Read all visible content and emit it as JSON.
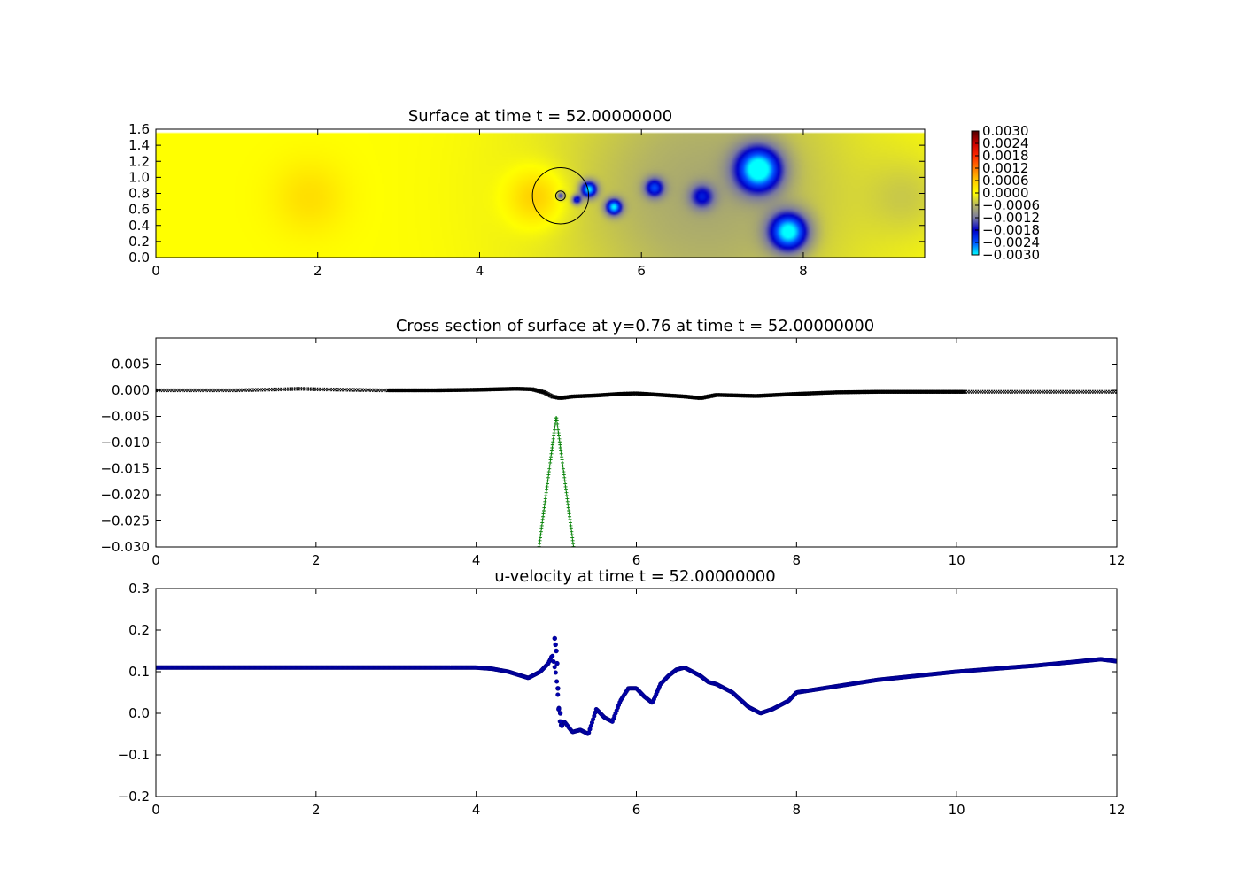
{
  "chart_data": [
    {
      "type": "heatmap",
      "title": "Surface at time t =    52.00000000",
      "xlim": [
        0,
        9.5
      ],
      "ylim": [
        0,
        1.6
      ],
      "xticks": [
        "0",
        "2",
        "4",
        "6",
        "8"
      ],
      "yticks": [
        "0.0",
        "0.2",
        "0.4",
        "0.6",
        "0.8",
        "1.0",
        "1.2",
        "1.4",
        "1.6"
      ],
      "colorbar": {
        "range": [
          -0.003,
          0.003
        ],
        "ticks": [
          "0.0030",
          "0.0024",
          "0.0018",
          "0.0012",
          "0.0006",
          "0.0000",
          "−0.0006",
          "−0.0012",
          "−0.0018",
          "−0.0024",
          "−0.0030"
        ]
      },
      "field_x_extent": [
        0,
        9.5
      ],
      "field_y_extent": [
        0,
        1.55
      ],
      "background_value": 0.0,
      "features": [
        {
          "x": 6.8,
          "y": 0.8,
          "radius": 1.9,
          "value": -0.00072
        },
        {
          "x": 4.7,
          "y": 0.75,
          "radius": 0.35,
          "value": 0.0007
        },
        {
          "x": 1.9,
          "y": 0.75,
          "radius": 0.45,
          "value": 0.00035
        },
        {
          "x": 7.45,
          "y": 1.1,
          "radius": 0.28,
          "value": -0.0028
        },
        {
          "x": 7.82,
          "y": 0.32,
          "radius": 0.24,
          "value": -0.0027
        },
        {
          "x": 5.35,
          "y": 0.85,
          "radius": 0.1,
          "value": -0.0026
        },
        {
          "x": 5.66,
          "y": 0.63,
          "radius": 0.1,
          "value": -0.0025
        },
        {
          "x": 6.16,
          "y": 0.87,
          "radius": 0.12,
          "value": -0.0017
        },
        {
          "x": 6.75,
          "y": 0.76,
          "radius": 0.15,
          "value": -0.0013
        },
        {
          "x": 5.2,
          "y": 0.72,
          "radius": 0.06,
          "value": -0.0018
        },
        {
          "x": 5.0,
          "y": 0.77,
          "radius": 0.05,
          "value": -0.0016
        },
        {
          "x": 9.3,
          "y": 0.75,
          "radius": 0.5,
          "value": -0.0003
        }
      ],
      "circles": [
        {
          "cx": 5.0,
          "cy": 0.77,
          "r": 0.35
        },
        {
          "cx": 5.0,
          "cy": 0.77,
          "r": 0.06
        }
      ]
    },
    {
      "type": "line",
      "title": "Cross section of surface at y=0.76 at time t =    52.00000000",
      "xlim": [
        0,
        12
      ],
      "ylim": [
        -0.03,
        0.01
      ],
      "xticks": [
        "0",
        "2",
        "4",
        "6",
        "8",
        "10",
        "12"
      ],
      "yticks": [
        "0.005",
        "0.000",
        "−0.005",
        "−0.010",
        "−0.015",
        "−0.020",
        "−0.025",
        "−0.030"
      ],
      "series": [
        {
          "marker": "x",
          "color": "#000000",
          "x_range": [
            0,
            12
          ],
          "points": 420,
          "x": [
            0,
            1,
            1.6,
            1.8,
            2.0,
            2.8,
            3.5,
            4.0,
            4.5,
            4.7,
            4.85,
            4.95,
            5.05,
            5.2,
            5.5,
            5.8,
            6.0,
            6.3,
            6.6,
            6.8,
            7.0,
            7.5,
            8.0,
            8.5,
            9.0,
            10.0,
            12.0
          ],
          "y": [
            0.0,
            0.0,
            0.0002,
            0.0003,
            0.0002,
            0.0,
            0.0,
            0.0001,
            0.0003,
            0.0002,
            -0.0004,
            -0.0012,
            -0.0015,
            -0.0012,
            -0.001,
            -0.0007,
            -0.0006,
            -0.0009,
            -0.0012,
            -0.0015,
            -0.0009,
            -0.0011,
            -0.0007,
            -0.0004,
            -0.0003,
            -0.0003,
            -0.0003
          ]
        },
        {
          "marker": "x",
          "color": "#000000",
          "x_range": [
            2.9,
            10.1
          ],
          "points": 700,
          "x": [
            2.9,
            3.5,
            4.0,
            4.5,
            4.7,
            4.85,
            4.95,
            5.05,
            5.2,
            5.5,
            5.8,
            6.0,
            6.3,
            6.6,
            6.8,
            7.0,
            7.5,
            8.0,
            8.5,
            9.0,
            10.1
          ],
          "y": [
            0.0,
            0.0,
            0.0001,
            0.0003,
            0.0002,
            -0.0004,
            -0.0012,
            -0.0015,
            -0.0012,
            -0.001,
            -0.0007,
            -0.0006,
            -0.0009,
            -0.0012,
            -0.0015,
            -0.0009,
            -0.0011,
            -0.0007,
            -0.0004,
            -0.0003,
            -0.0003
          ]
        },
        {
          "marker": "+",
          "color": "#007f00",
          "x_range": [
            4.78,
            5.22
          ],
          "points": 90,
          "x": [
            4.78,
            5.0,
            5.22
          ],
          "y": [
            -0.0305,
            -0.005,
            -0.0305
          ]
        }
      ]
    },
    {
      "type": "scatter",
      "title": "u-velocity at time t =    52.00000000",
      "xlim": [
        0,
        12
      ],
      "ylim": [
        -0.2,
        0.3
      ],
      "xticks": [
        "0",
        "2",
        "4",
        "6",
        "8",
        "10",
        "12"
      ],
      "yticks": [
        "0.3",
        "0.2",
        "0.1",
        "0.0",
        "−0.1",
        "−0.2"
      ],
      "series": [
        {
          "marker": "o",
          "color": "#00007f",
          "x_range": [
            0,
            12
          ],
          "points": 900,
          "x": [
            0,
            2,
            4.0,
            4.2,
            4.4,
            4.6,
            4.65,
            4.8,
            4.9,
            4.95,
            5.0,
            5.05,
            5.1,
            5.2,
            5.3,
            5.4,
            5.5,
            5.6,
            5.7,
            5.8,
            5.9,
            6.0,
            6.1,
            6.2,
            6.3,
            6.4,
            6.5,
            6.6,
            6.7,
            6.8,
            6.9,
            7.0,
            7.2,
            7.4,
            7.55,
            7.7,
            7.9,
            8.0,
            8.5,
            9.0,
            10.0,
            11.0,
            11.8,
            12.0
          ],
          "y": [
            0.11,
            0.11,
            0.11,
            0.107,
            0.1,
            0.088,
            0.085,
            0.1,
            0.12,
            0.14,
            0.09,
            -0.03,
            -0.02,
            -0.045,
            -0.04,
            -0.05,
            0.01,
            -0.01,
            -0.02,
            0.03,
            0.06,
            0.06,
            0.04,
            0.025,
            0.07,
            0.09,
            0.105,
            0.11,
            0.1,
            0.09,
            0.075,
            0.07,
            0.05,
            0.015,
            0.0,
            0.01,
            0.03,
            0.05,
            0.065,
            0.08,
            0.1,
            0.115,
            0.13,
            0.125
          ]
        }
      ],
      "outliers": {
        "x": [
          4.98,
          4.99,
          5.0,
          5.01,
          5.02,
          5.03,
          5.05,
          5.06,
          5.07
        ],
        "y": [
          0.18,
          0.165,
          0.15,
          0.12,
          0.06,
          0.01,
          0.0,
          -0.02,
          -0.03
        ]
      }
    }
  ]
}
